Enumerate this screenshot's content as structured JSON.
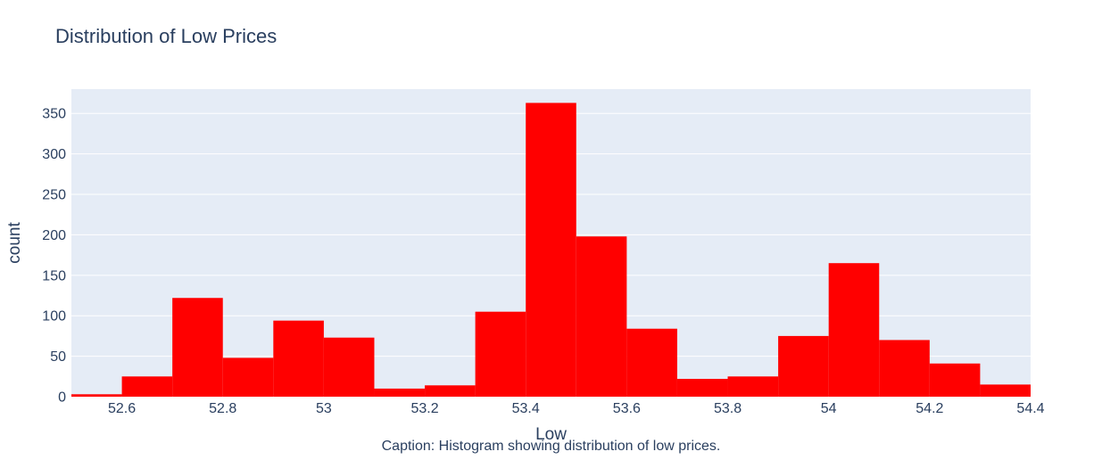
{
  "chart_data": {
    "type": "bar",
    "title": "Distribution of Low Prices",
    "xlabel": "Low",
    "ylabel": "count",
    "caption": "Caption: Histogram showing distribution of low prices.",
    "bar_color": "#ff0000",
    "plot_bg": "#e5ecf6",
    "grid_color": "#ffffff",
    "grid": true,
    "xlim": [
      52.5,
      54.4
    ],
    "ylim": [
      0,
      380
    ],
    "bin_width": 0.1,
    "bin_starts": [
      52.5,
      52.6,
      52.7,
      52.8,
      52.9,
      53.0,
      53.1,
      53.2,
      53.3,
      53.4,
      53.5,
      53.6,
      53.7,
      53.8,
      53.9,
      54.0,
      54.1,
      54.2,
      54.3
    ],
    "values": [
      3,
      25,
      122,
      48,
      94,
      73,
      10,
      14,
      105,
      363,
      198,
      84,
      22,
      25,
      75,
      165,
      70,
      41,
      15
    ],
    "x_ticks": [
      52.6,
      52.8,
      53.0,
      53.2,
      53.4,
      53.6,
      53.8,
      54.0,
      54.2,
      54.4
    ],
    "x_tick_labels": [
      "52.6",
      "52.8",
      "53",
      "53.2",
      "53.4",
      "53.6",
      "53.8",
      "54",
      "54.2",
      "54.4"
    ],
    "y_ticks": [
      0,
      50,
      100,
      150,
      200,
      250,
      300,
      350
    ],
    "y_tick_labels": [
      "0",
      "50",
      "100",
      "150",
      "200",
      "250",
      "300",
      "350"
    ]
  }
}
